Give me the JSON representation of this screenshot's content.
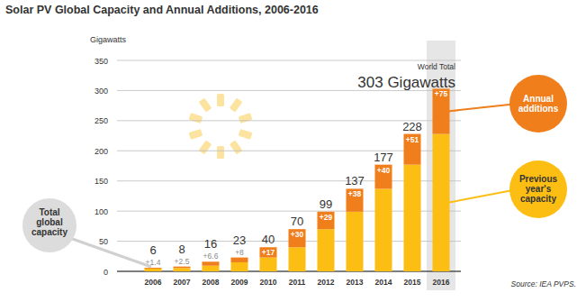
{
  "chart_data": {
    "type": "bar",
    "title": "Solar PV Global Capacity and Annual Additions, 2006-2016",
    "y_label": "Gigawatts",
    "categories": [
      "2006",
      "2007",
      "2008",
      "2009",
      "2010",
      "2011",
      "2012",
      "2013",
      "2014",
      "2015",
      "2016"
    ],
    "series": [
      {
        "name": "Previous year's capacity",
        "color": "#fdbe13",
        "values": [
          4.6,
          5.5,
          9.4,
          15,
          23,
          40,
          70,
          99,
          137,
          177,
          228
        ]
      },
      {
        "name": "Annual additions",
        "color": "#f07e1b",
        "values": [
          1.4,
          2.5,
          6.6,
          8,
          17,
          30,
          29,
          38,
          40,
          51,
          75
        ],
        "value_labels": [
          "+1.4",
          "+2.5",
          "+6.6",
          "+8",
          "+17",
          "+30",
          "+29",
          "+38",
          "+40",
          "+51",
          "+75"
        ]
      }
    ],
    "totals": [
      6,
      8,
      16,
      23,
      40,
      70,
      99,
      137,
      177,
      228,
      303
    ],
    "annotations": [
      "World Total",
      "303 Gigawatts",
      "Total global capacity"
    ],
    "source": "Source: IEA PVPS.",
    "ylim": [
      0,
      350
    ],
    "yticks": [
      0,
      50,
      100,
      150,
      200,
      250,
      300,
      350
    ],
    "stacked": true,
    "grid": true,
    "data_labels": true
  }
}
